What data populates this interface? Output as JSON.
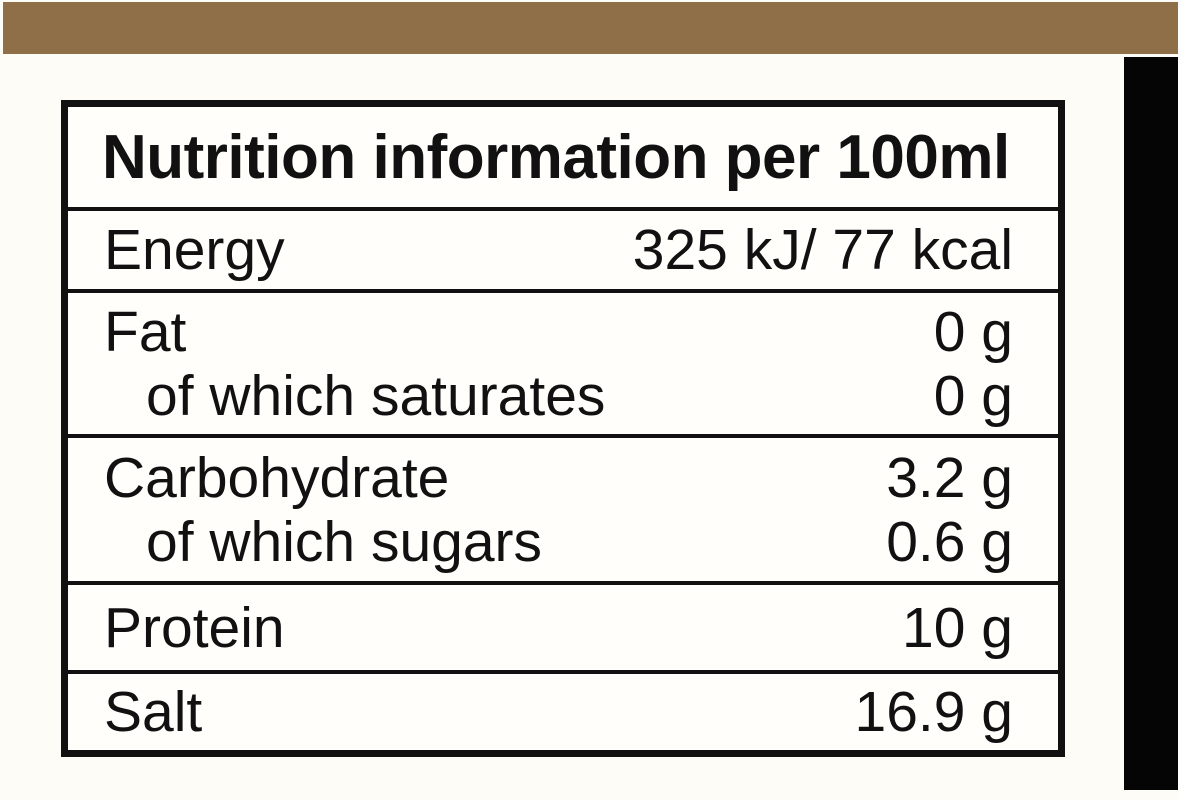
{
  "colors": {
    "top_bar": "#8f6f48",
    "side_bar": "#050505",
    "table_border": "#111111",
    "page_background": "#fdfcf7",
    "text": "#111111"
  },
  "table": {
    "title": "Nutrition information per 100ml",
    "rows": [
      {
        "label": "Energy",
        "value": "325 kJ/ 77 kcal"
      },
      {
        "label": "Fat",
        "value": "0 g",
        "sub_label": "of which saturates",
        "sub_value": "0 g"
      },
      {
        "label": "Carbohydrate",
        "value": "3.2 g",
        "sub_label": "of which sugars",
        "sub_value": "0.6 g"
      },
      {
        "label": "Protein",
        "value": "10 g"
      },
      {
        "label": "Salt",
        "value": "16.9 g"
      }
    ]
  }
}
